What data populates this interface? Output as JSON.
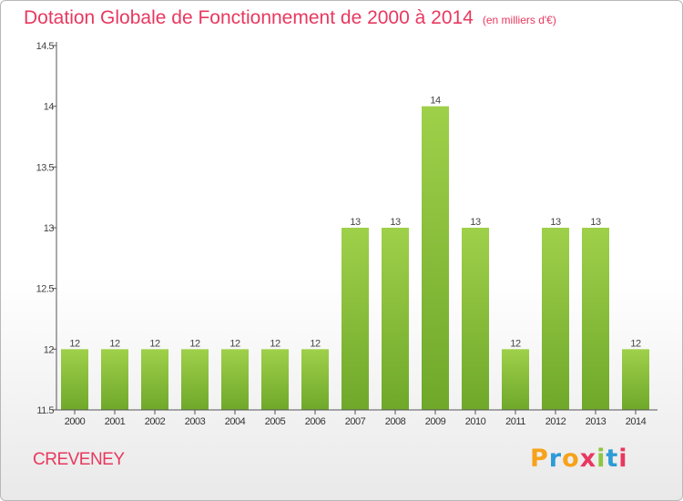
{
  "chart_data": {
    "type": "bar",
    "title": "Dotation Globale de Fonctionnement de 2000 à 2014",
    "unit_note": "(en milliers d'€)",
    "categories": [
      "2000",
      "2001",
      "2002",
      "2003",
      "2004",
      "2005",
      "2006",
      "2007",
      "2008",
      "2009",
      "2010",
      "2011",
      "2012",
      "2013",
      "2014"
    ],
    "values": [
      12,
      12,
      12,
      12,
      12,
      12,
      12,
      13,
      13,
      14,
      13,
      12,
      13,
      13,
      12
    ],
    "yticks": [
      "11.5",
      "12",
      "12.5",
      "13",
      "13.5",
      "14",
      "14.5"
    ],
    "ylim": [
      11.5,
      14.5
    ],
    "xlabel": "",
    "ylabel": "",
    "grid": false,
    "legend": "none",
    "bar_color": "#8cc63f"
  },
  "footer": {
    "place": "CREVENEY",
    "logo": [
      "P",
      "r",
      "o",
      "x",
      "i",
      "t",
      "i"
    ],
    "logo_colors": [
      "#f7a21b",
      "#2e9bd6",
      "#f7a21b",
      "#e8385f",
      "#8cc63f",
      "#2e9bd6",
      "#e8385f"
    ]
  }
}
